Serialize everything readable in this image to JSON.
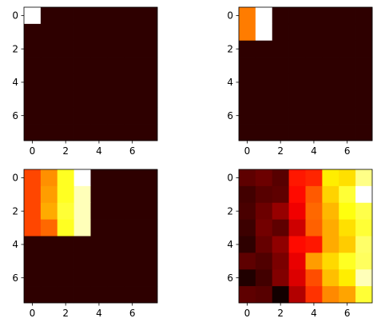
{
  "chart_data": [
    {
      "type": "heatmap",
      "colormap": "hot",
      "value_range": [
        0,
        1
      ],
      "xticks": [
        "0",
        "2",
        "4",
        "6"
      ],
      "yticks": [
        "0",
        "2",
        "4",
        "6"
      ],
      "grid": false,
      "legend": "none",
      "z": [
        [
          1.0,
          0.05,
          0.05,
          0.05,
          0.05,
          0.05,
          0.05,
          0.05
        ],
        [
          0.05,
          0.05,
          0.05,
          0.05,
          0.05,
          0.05,
          0.05,
          0.05
        ],
        [
          0.05,
          0.05,
          0.05,
          0.05,
          0.05,
          0.05,
          0.05,
          0.05
        ],
        [
          0.05,
          0.05,
          0.05,
          0.05,
          0.05,
          0.05,
          0.05,
          0.05
        ],
        [
          0.05,
          0.05,
          0.05,
          0.05,
          0.05,
          0.05,
          0.05,
          0.05
        ],
        [
          0.05,
          0.05,
          0.05,
          0.05,
          0.05,
          0.05,
          0.05,
          0.05
        ],
        [
          0.05,
          0.05,
          0.05,
          0.05,
          0.05,
          0.05,
          0.05,
          0.05
        ],
        [
          0.05,
          0.05,
          0.05,
          0.05,
          0.05,
          0.05,
          0.05,
          0.05
        ]
      ]
    },
    {
      "type": "heatmap",
      "colormap": "hot",
      "value_range": [
        0,
        1
      ],
      "xticks": [
        "0",
        "2",
        "4",
        "6"
      ],
      "yticks": [
        "0",
        "2",
        "4",
        "6"
      ],
      "grid": false,
      "legend": "none",
      "z": [
        [
          0.55,
          1.0,
          0.05,
          0.05,
          0.05,
          0.05,
          0.05,
          0.05
        ],
        [
          0.55,
          1.0,
          0.05,
          0.05,
          0.05,
          0.05,
          0.05,
          0.05
        ],
        [
          0.05,
          0.05,
          0.05,
          0.05,
          0.05,
          0.05,
          0.05,
          0.05
        ],
        [
          0.05,
          0.05,
          0.05,
          0.05,
          0.05,
          0.05,
          0.05,
          0.05
        ],
        [
          0.05,
          0.05,
          0.05,
          0.05,
          0.05,
          0.05,
          0.05,
          0.05
        ],
        [
          0.05,
          0.05,
          0.05,
          0.05,
          0.05,
          0.05,
          0.05,
          0.05
        ],
        [
          0.05,
          0.05,
          0.05,
          0.05,
          0.05,
          0.05,
          0.05,
          0.05
        ],
        [
          0.05,
          0.05,
          0.05,
          0.05,
          0.05,
          0.05,
          0.05,
          0.05
        ]
      ]
    },
    {
      "type": "heatmap",
      "colormap": "hot",
      "value_range": [
        0,
        1
      ],
      "xticks": [
        "0",
        "2",
        "4",
        "6"
      ],
      "yticks": [
        "0",
        "2",
        "4",
        "6"
      ],
      "grid": false,
      "legend": "none",
      "z": [
        [
          0.47,
          0.58,
          0.78,
          1.0,
          0.05,
          0.05,
          0.05,
          0.05
        ],
        [
          0.47,
          0.6,
          0.78,
          0.93,
          0.05,
          0.05,
          0.05,
          0.05
        ],
        [
          0.47,
          0.62,
          0.8,
          0.93,
          0.05,
          0.05,
          0.05,
          0.05
        ],
        [
          0.47,
          0.52,
          0.78,
          0.93,
          0.05,
          0.05,
          0.05,
          0.05
        ],
        [
          0.05,
          0.05,
          0.05,
          0.05,
          0.05,
          0.05,
          0.05,
          0.05
        ],
        [
          0.05,
          0.05,
          0.05,
          0.05,
          0.05,
          0.05,
          0.05,
          0.05
        ],
        [
          0.05,
          0.05,
          0.05,
          0.05,
          0.05,
          0.05,
          0.05,
          0.05
        ],
        [
          0.05,
          0.05,
          0.05,
          0.05,
          0.05,
          0.05,
          0.05,
          0.05
        ]
      ]
    },
    {
      "type": "heatmap",
      "colormap": "hot",
      "value_range": [
        0,
        1
      ],
      "xticks": [
        "0",
        "2",
        "4",
        "6"
      ],
      "yticks": [
        "0",
        "2",
        "4",
        "6"
      ],
      "grid": false,
      "legend": "none",
      "z": [
        [
          0.12,
          0.14,
          0.11,
          0.4,
          0.42,
          0.72,
          0.7,
          0.88
        ],
        [
          0.08,
          0.11,
          0.12,
          0.38,
          0.5,
          0.68,
          0.8,
          1.0
        ],
        [
          0.09,
          0.14,
          0.2,
          0.33,
          0.52,
          0.64,
          0.76,
          0.82
        ],
        [
          0.07,
          0.15,
          0.12,
          0.28,
          0.51,
          0.62,
          0.7,
          0.8
        ],
        [
          0.05,
          0.13,
          0.19,
          0.38,
          0.4,
          0.62,
          0.67,
          0.85
        ],
        [
          0.12,
          0.1,
          0.16,
          0.32,
          0.6,
          0.69,
          0.78,
          0.84
        ],
        [
          0.03,
          0.08,
          0.17,
          0.3,
          0.48,
          0.65,
          0.72,
          0.93
        ],
        [
          0.12,
          0.11,
          0.01,
          0.24,
          0.44,
          0.57,
          0.61,
          0.8
        ]
      ]
    }
  ]
}
